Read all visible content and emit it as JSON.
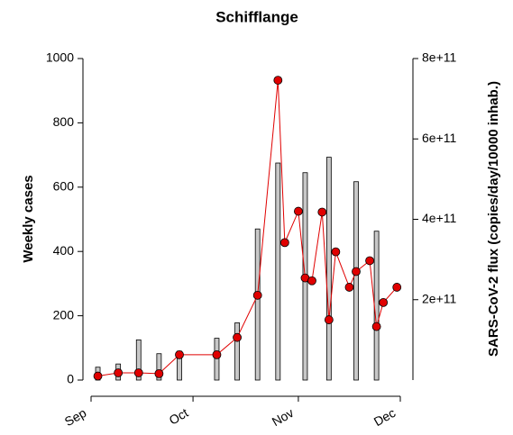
{
  "chart_data": {
    "type": "combo",
    "title": "Schifflange",
    "y_label": "Weekly cases",
    "y2_label": "SARS-CoV-2 flux (copies/day/10000 inhab.)",
    "xlim": [
      0,
      91
    ],
    "xticks": [
      {
        "value": 0,
        "label": "Sep"
      },
      {
        "value": 30,
        "label": "Oct"
      },
      {
        "value": 61,
        "label": "Nov"
      },
      {
        "value": 91,
        "label": "Dec"
      }
    ],
    "ylim": [
      0,
      1000
    ],
    "yticks": [
      0,
      200,
      400,
      600,
      800,
      1000
    ],
    "y2lim": [
      0,
      800000000000
    ],
    "y2ticks": [
      {
        "value": 200000000000,
        "label": "2e+11"
      },
      {
        "value": 400000000000,
        "label": "4e+11"
      },
      {
        "value": 600000000000,
        "label": "6e+11"
      },
      {
        "value": 800000000000,
        "label": "8e+11"
      }
    ],
    "series": [
      {
        "type": "bar",
        "color": "#c8c8c8",
        "axis": "y",
        "x": [
          2,
          8,
          14,
          20,
          26,
          37,
          43,
          49,
          55,
          63,
          70,
          78,
          84
        ],
        "values": [
          40,
          50,
          125,
          82,
          90,
          130,
          178,
          470,
          675,
          645,
          693,
          617,
          463
        ]
      },
      {
        "type": "line",
        "color": "#e00000",
        "axis": "y2",
        "x": [
          2,
          8,
          14,
          20,
          26,
          37,
          43,
          49,
          55,
          57,
          61,
          63,
          65,
          68,
          70,
          72,
          76,
          78,
          82,
          84,
          86,
          90
        ],
        "values": [
          10000000000,
          18000000000,
          18000000000,
          16000000000,
          63000000000,
          63000000000,
          106000000000,
          211000000000,
          746000000000,
          342000000000,
          420000000000,
          254000000000,
          247000000000,
          418000000000,
          150000000000,
          319000000000,
          231000000000,
          270000000000,
          297000000000,
          133000000000,
          193000000000,
          231000000000
        ]
      }
    ]
  }
}
